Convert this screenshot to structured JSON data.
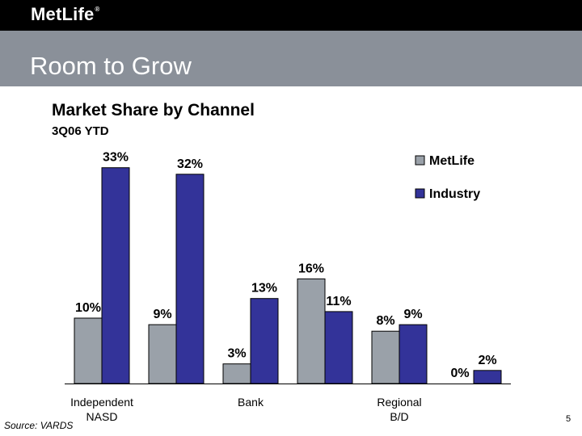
{
  "header": {
    "logo_text": "MetLife",
    "logo_mark": "®",
    "title": "Room to Grow"
  },
  "chart_data": {
    "type": "bar",
    "title": "Market Share by Channel",
    "subtitle": "3Q06 YTD",
    "categories": [
      "Independent NASD",
      "",
      "Bank",
      "",
      "Regional B/D",
      ""
    ],
    "category_lines": [
      [
        "Independent",
        "NASD"
      ],
      [],
      [
        "Bank"
      ],
      [],
      [
        "Regional",
        "B/D"
      ],
      []
    ],
    "series": [
      {
        "name": "MetLife",
        "color": "#9aa1a9",
        "values": [
          10,
          9,
          3,
          16,
          8,
          0
        ],
        "labels": [
          "10%",
          "9%",
          "3%",
          "16%",
          "8%",
          "0%"
        ]
      },
      {
        "name": "Industry",
        "color": "#333399",
        "values": [
          33,
          32,
          13,
          11,
          9,
          2
        ],
        "labels": [
          "33%",
          "32%",
          "13%",
          "11%",
          "9%",
          "2%"
        ]
      }
    ],
    "ylim": [
      0,
      35
    ],
    "grid": false,
    "legend_position": "top-right"
  },
  "footer": {
    "source": "Source: VARDS",
    "page_number": "5"
  }
}
